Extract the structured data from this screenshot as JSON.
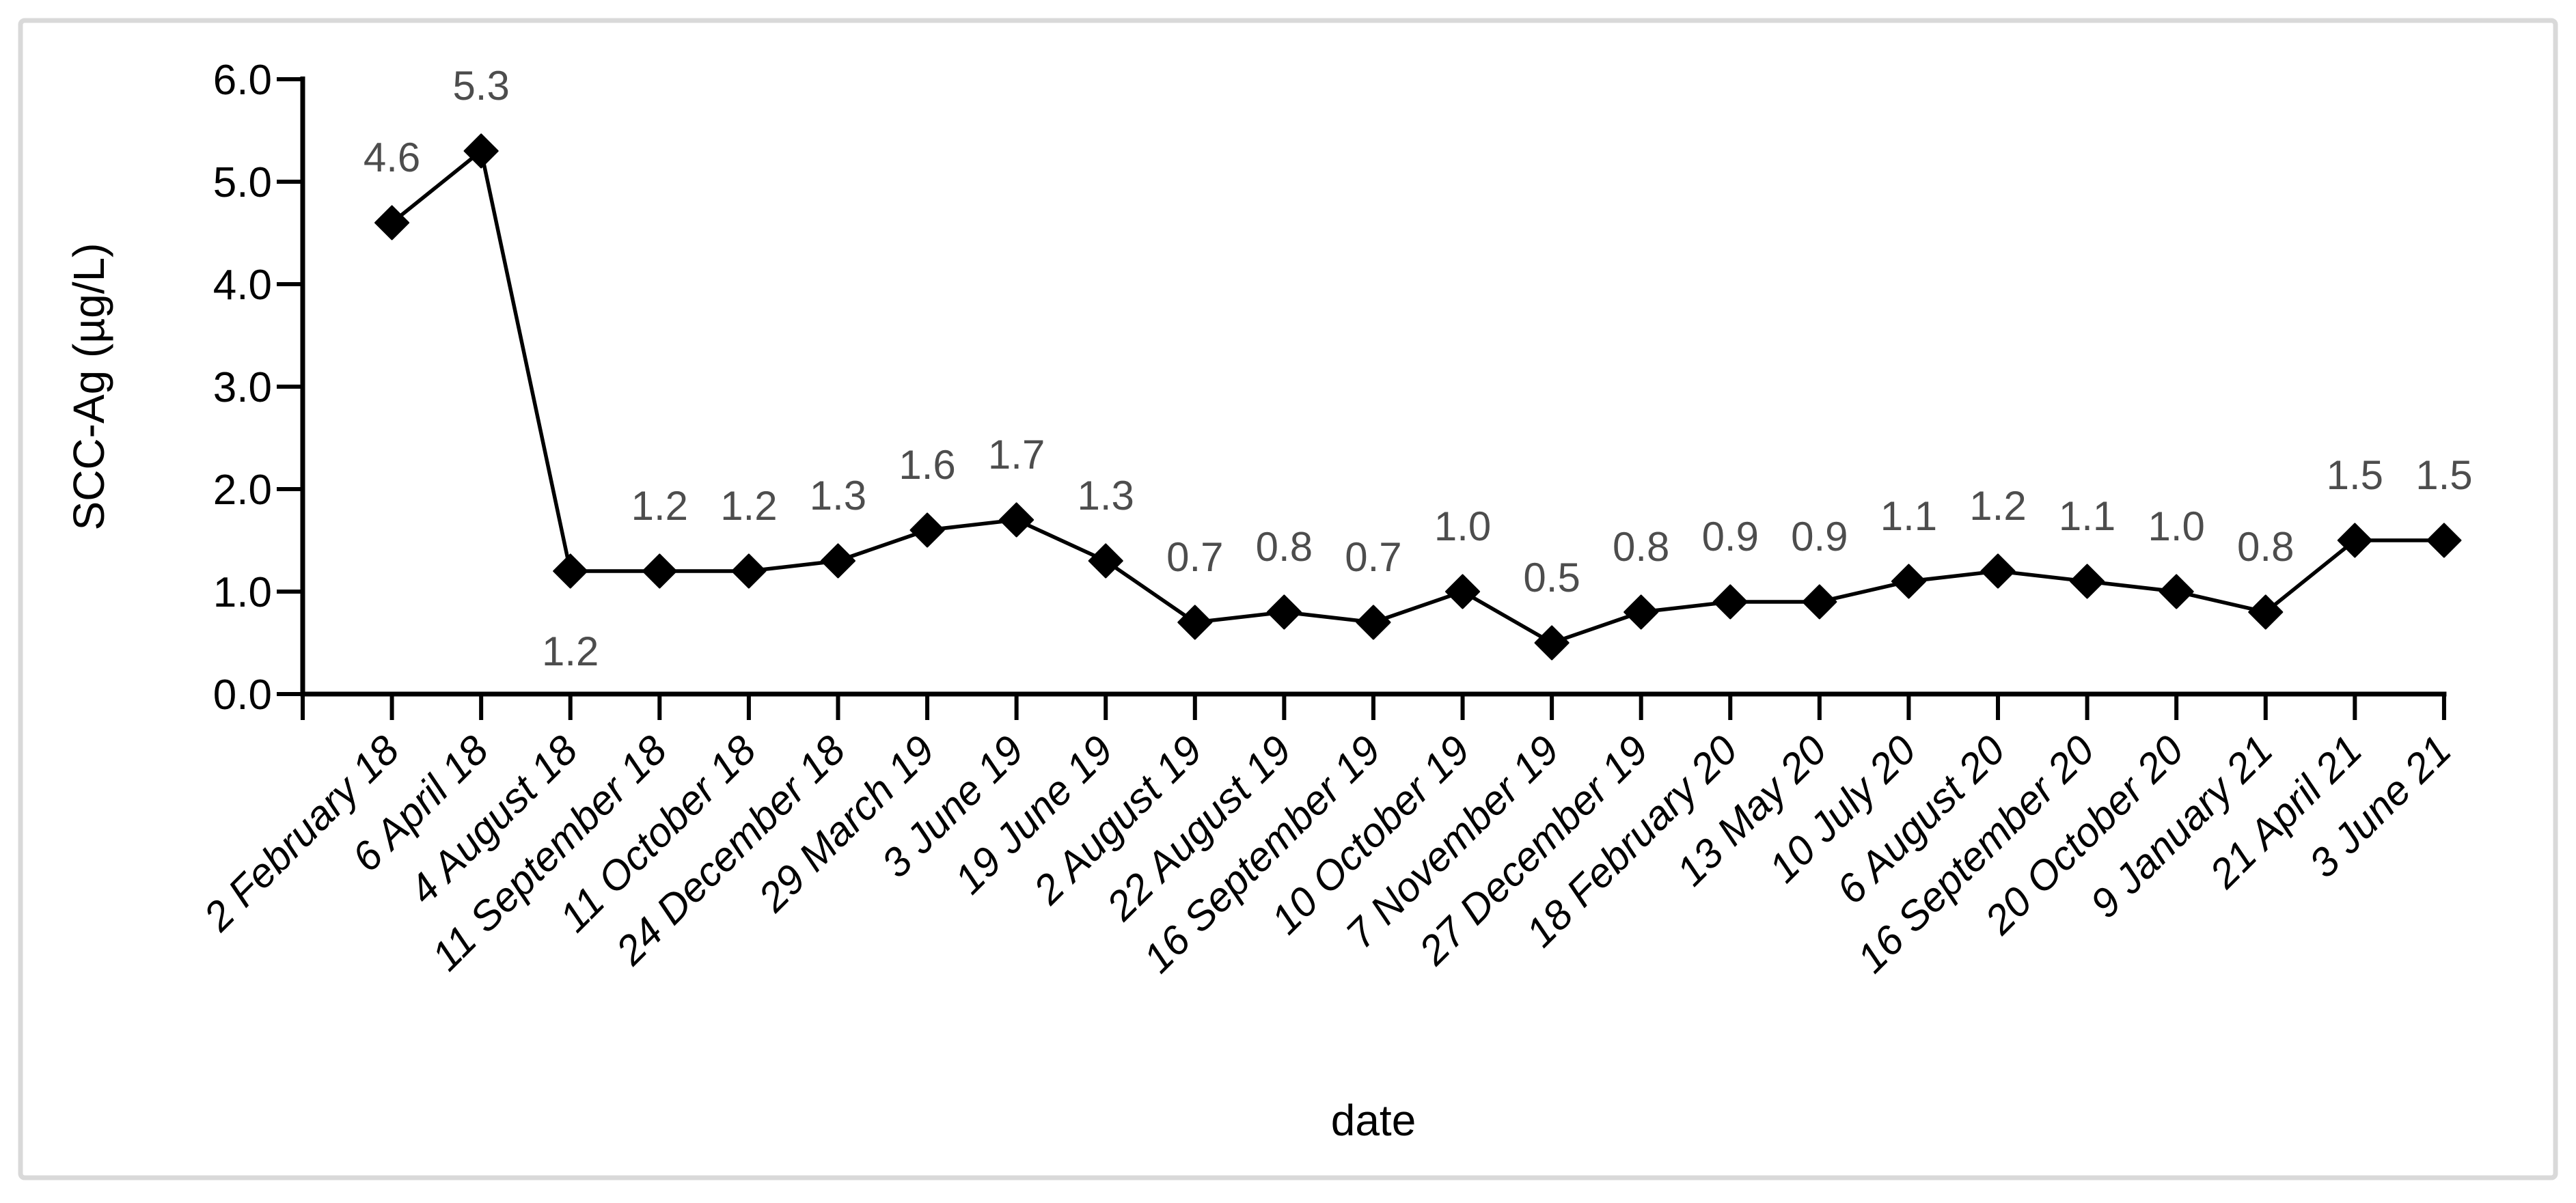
{
  "chart_data": {
    "type": "line",
    "title": "",
    "xlabel": "date",
    "ylabel": "SCC-Ag (µg/L)",
    "ylim": [
      0.0,
      6.0
    ],
    "ytick_step": 1.0,
    "ytick_labels": [
      "0.0",
      "1.0",
      "2.0",
      "3.0",
      "4.0",
      "5.0",
      "6.0"
    ],
    "grid": false,
    "legend": "none",
    "categories": [
      "2 February 18",
      "6 April 18",
      "4 August 18",
      "11 September 18",
      "11 October 18",
      "24 December 18",
      "29 March 19",
      "3 June 19",
      "19 June 19",
      "2 August 19",
      "22 August 19",
      "16 September 19",
      "10 October 19",
      "7 November 19",
      "27 December 19",
      "18 February 20",
      "13 May 20",
      "10 July 20",
      "6 August 20",
      "16 September 20",
      "20 October 20",
      "9 January 21",
      "21 April 21",
      "3 June 21"
    ],
    "series": [
      {
        "name": "SCC-Ag",
        "values": [
          4.6,
          5.3,
          1.2,
          1.2,
          1.2,
          1.3,
          1.6,
          1.7,
          1.3,
          0.7,
          0.8,
          0.7,
          1.0,
          0.5,
          0.8,
          0.9,
          0.9,
          1.1,
          1.2,
          1.1,
          1.0,
          0.8,
          1.5,
          1.5
        ],
        "marker": "diamond",
        "line_color": "#000000",
        "marker_color": "#000000"
      }
    ],
    "data_labels": {
      "visible": true,
      "color": "#4d4d4d",
      "values": [
        "4.6",
        "5.3",
        "1.2",
        "1.2",
        "1.2",
        "1.3",
        "1.6",
        "1.7",
        "1.3",
        "0.7",
        "0.8",
        "0.7",
        "1.0",
        "0.5",
        "0.8",
        "0.9",
        "0.9",
        "1.1",
        "1.2",
        "1.1",
        "1.0",
        "0.8",
        "1.5",
        "1.5"
      ],
      "below_indices": [
        2
      ]
    },
    "colors": {
      "axis": "#000000",
      "tick_text": "#000000",
      "frame_border": "#d9d9d9",
      "background": "#ffffff"
    }
  }
}
